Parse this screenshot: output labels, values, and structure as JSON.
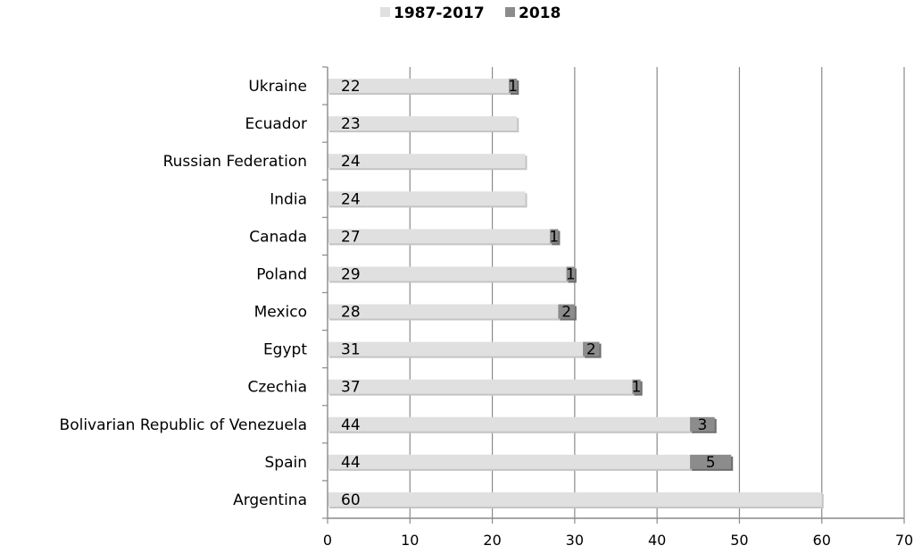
{
  "chart_data": {
    "type": "bar",
    "orientation": "horizontal",
    "stacked": true,
    "categories": [
      "Ukraine",
      "Ecuador",
      "Russian Federation",
      "India",
      "Canada",
      "Poland",
      "Mexico",
      "Egypt",
      "Czechia",
      "Bolivarian Republic of Venezuela",
      "Spain",
      "Argentina"
    ],
    "series": [
      {
        "name": "1987-2017",
        "color": "#e0e0e0",
        "values": [
          22,
          23,
          24,
          24,
          27,
          29,
          28,
          31,
          37,
          44,
          44,
          60
        ]
      },
      {
        "name": "2018",
        "color": "#8c8c8c",
        "values": [
          1,
          null,
          null,
          null,
          1,
          1,
          2,
          2,
          1,
          3,
          5,
          null
        ]
      }
    ],
    "xlim": [
      0,
      70
    ],
    "xticks": [
      0,
      10,
      20,
      30,
      40,
      50,
      60,
      70
    ],
    "grid": true,
    "legend_position": "top-center"
  }
}
